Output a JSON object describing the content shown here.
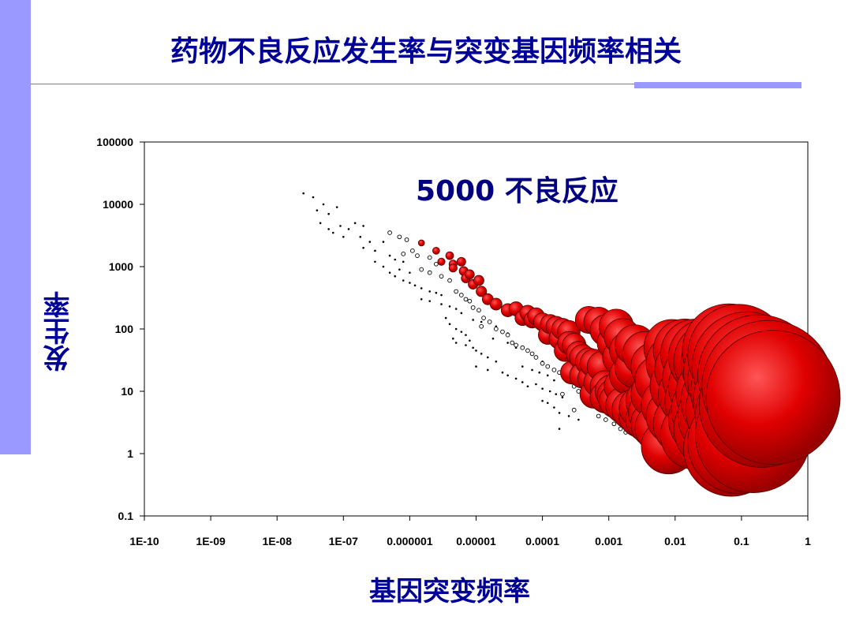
{
  "title": "药物不良反应发生率与突变基因频率相关",
  "chart_data": {
    "type": "scatter",
    "title": "",
    "annotation": "5000 不良反应",
    "xlabel": "基因突变频率",
    "ylabel": "发生率",
    "xscale": "log",
    "yscale": "log",
    "xlim": [
      1e-10,
      1
    ],
    "ylim": [
      0.1,
      100000
    ],
    "x_tick_labels": [
      "1E-10",
      "1E-09",
      "1E-08",
      "1E-07",
      "0.000001",
      "0.00001",
      "0.0001",
      "0.001",
      "0.01",
      "0.1",
      "1"
    ],
    "y_tick_labels": [
      "100000",
      "10000",
      "1000",
      "100",
      "10",
      "1",
      "0.1"
    ],
    "marker_colors": {
      "dot": "#000000",
      "open": "#000000",
      "bubble": "#e00000"
    },
    "series": [
      {
        "marker": "dot",
        "points": [
          [
            2.5e-08,
            15000
          ],
          [
            3.5e-08,
            13000
          ],
          [
            5e-08,
            10000
          ],
          [
            6e-08,
            7000
          ],
          [
            4e-08,
            8000
          ],
          [
            8e-08,
            9000
          ],
          [
            4.5e-08,
            5000
          ],
          [
            6e-08,
            4000
          ],
          [
            9e-08,
            4500
          ],
          [
            1.2e-07,
            4000
          ],
          [
            7e-08,
            3500
          ],
          [
            1e-07,
            3000
          ],
          [
            1.5e-07,
            5000
          ],
          [
            2e-07,
            4500
          ],
          [
            1.8e-07,
            3000
          ],
          [
            2.5e-07,
            2500
          ],
          [
            2e-07,
            2000
          ],
          [
            3e-07,
            1800
          ],
          [
            4e-07,
            2500
          ],
          [
            5e-07,
            1500
          ],
          [
            3e-07,
            1200
          ],
          [
            6e-07,
            1300
          ],
          [
            8e-07,
            1200
          ],
          [
            4e-07,
            1000
          ],
          [
            7e-07,
            900
          ],
          [
            1e-06,
            800
          ],
          [
            5e-07,
            800
          ],
          [
            6e-07,
            700
          ],
          [
            8e-07,
            600
          ],
          [
            1e-06,
            550
          ],
          [
            1.2e-06,
            500
          ],
          [
            1.5e-06,
            450
          ],
          [
            2e-06,
            400
          ],
          [
            2.5e-06,
            380
          ],
          [
            3e-06,
            350
          ],
          [
            1.5e-06,
            300
          ],
          [
            2e-06,
            280
          ],
          [
            3e-06,
            250
          ],
          [
            4e-06,
            230
          ],
          [
            5e-06,
            210
          ],
          [
            3.5e-06,
            150
          ],
          [
            4e-06,
            120
          ],
          [
            5e-06,
            100
          ],
          [
            6e-06,
            90
          ],
          [
            7e-06,
            80
          ],
          [
            4.5e-06,
            70
          ],
          [
            5e-06,
            60
          ],
          [
            7e-06,
            55
          ],
          [
            9e-06,
            50
          ],
          [
            1e-05,
            45
          ],
          [
            1.2e-05,
            40
          ],
          [
            1.5e-05,
            35
          ],
          [
            2e-05,
            30
          ],
          [
            1e-05,
            25
          ],
          [
            1.5e-05,
            22
          ],
          [
            2.5e-05,
            20
          ],
          [
            3e-05,
            18
          ],
          [
            4e-05,
            16
          ],
          [
            5e-05,
            14
          ],
          [
            6e-05,
            12
          ],
          [
            3e-05,
            60
          ],
          [
            4e-05,
            50
          ],
          [
            6e-05,
            45
          ],
          [
            7e-05,
            40
          ],
          [
            8e-05,
            35
          ],
          [
            0.0001,
            30
          ],
          [
            5e-05,
            25
          ],
          [
            7e-05,
            22
          ],
          [
            9e-05,
            20
          ],
          [
            0.00012,
            18
          ],
          [
            0.00015,
            15
          ],
          [
            8e-05,
            13
          ],
          [
            0.0001,
            11
          ],
          [
            0.00013,
            10
          ],
          [
            0.00016,
            9
          ],
          [
            0.0002,
            8
          ],
          [
            0.0001,
            7
          ],
          [
            0.00012,
            6.5
          ],
          [
            0.00015,
            5.5
          ],
          [
            0.00018,
            4.5
          ],
          [
            0.00025,
            4
          ],
          [
            0.00035,
            3.5
          ],
          [
            0.00018,
            2.5
          ],
          [
            6e-06,
            180
          ],
          [
            9e-06,
            140
          ],
          [
            1.2e-05,
            130
          ],
          [
            2e-05,
            110
          ],
          [
            8e-06,
            65
          ],
          [
            1.8e-05,
            70
          ],
          [
            3e-05,
            85
          ]
        ]
      },
      {
        "marker": "open",
        "points": [
          [
            5e-07,
            3500
          ],
          [
            7e-07,
            3000
          ],
          [
            9e-07,
            2700
          ],
          [
            1.1e-06,
            1800
          ],
          [
            8e-07,
            1600
          ],
          [
            1.3e-06,
            1500
          ],
          [
            2e-06,
            1400
          ],
          [
            2.5e-06,
            1100
          ],
          [
            1.5e-06,
            900
          ],
          [
            2e-06,
            800
          ],
          [
            3e-06,
            700
          ],
          [
            4e-06,
            600
          ],
          [
            5e-06,
            400
          ],
          [
            6e-06,
            350
          ],
          [
            7e-06,
            300
          ],
          [
            8e-06,
            280
          ],
          [
            9e-06,
            220
          ],
          [
            1.1e-05,
            200
          ],
          [
            1.3e-05,
            150
          ],
          [
            1.6e-05,
            130
          ],
          [
            1.2e-05,
            110
          ],
          [
            2e-05,
            100
          ],
          [
            2.5e-05,
            90
          ],
          [
            3e-05,
            80
          ],
          [
            3.5e-05,
            60
          ],
          [
            4e-05,
            55
          ],
          [
            5e-05,
            50
          ],
          [
            6e-05,
            45
          ],
          [
            7e-05,
            40
          ],
          [
            8e-05,
            35
          ],
          [
            0.0001,
            28
          ],
          [
            0.00012,
            25
          ],
          [
            0.00015,
            22
          ],
          [
            0.00018,
            20
          ],
          [
            0.00022,
            18
          ],
          [
            0.00026,
            16
          ],
          [
            0.0003,
            12
          ],
          [
            0.00035,
            10
          ],
          [
            0.0002,
            9
          ],
          [
            0.0004,
            8
          ],
          [
            0.0005,
            7
          ],
          [
            0.0006,
            6
          ],
          [
            0.0003,
            5
          ],
          [
            0.0007,
            4
          ],
          [
            0.0009,
            3.5
          ],
          [
            0.0012,
            3
          ],
          [
            0.0015,
            2.5
          ],
          [
            0.0018,
            2.2
          ],
          [
            0.0025,
            2
          ]
        ]
      },
      {
        "marker": "bubble",
        "size_note": "bubble size grows with mutation frequency",
        "points": [
          [
            1.5e-06,
            2400
          ],
          [
            2.5e-06,
            1800
          ],
          [
            4e-06,
            1500
          ],
          [
            6e-06,
            1200
          ],
          [
            4.5e-06,
            1100
          ],
          [
            3e-06,
            1200
          ],
          [
            4.5e-06,
            950
          ],
          [
            6.5e-06,
            850
          ],
          [
            8e-06,
            750
          ],
          [
            7e-06,
            650
          ],
          [
            1.1e-05,
            600
          ],
          [
            9e-06,
            520
          ],
          [
            1.2e-05,
            400
          ],
          [
            1.5e-05,
            300
          ],
          [
            2e-05,
            250
          ],
          [
            3e-05,
            200
          ],
          [
            4e-05,
            210
          ],
          [
            6e-05,
            180
          ],
          [
            8e-05,
            160
          ],
          [
            5e-05,
            150
          ],
          [
            7e-05,
            140
          ],
          [
            0.0001,
            130
          ],
          [
            0.00013,
            120
          ],
          [
            0.00016,
            110
          ],
          [
            0.0002,
            100
          ],
          [
            0.00025,
            90
          ],
          [
            0.00012,
            80
          ],
          [
            0.00018,
            70
          ],
          [
            0.00025,
            60
          ],
          [
            0.0003,
            55
          ],
          [
            0.00022,
            45
          ],
          [
            0.00035,
            40
          ],
          [
            0.0004,
            35
          ],
          [
            0.0005,
            30
          ],
          [
            0.0006,
            28
          ],
          [
            0.0008,
            25
          ],
          [
            0.00028,
            20
          ],
          [
            0.0004,
            18
          ],
          [
            0.00055,
            16
          ],
          [
            0.0007,
            14
          ],
          [
            0.0009,
            12
          ],
          [
            0.0011,
            10
          ],
          [
            0.0006,
            9
          ],
          [
            0.0009,
            8
          ],
          [
            0.0013,
            7
          ],
          [
            0.0017,
            6
          ],
          [
            0.0022,
            5
          ],
          [
            0.003,
            4
          ],
          [
            0.004,
            3.5
          ],
          [
            0.005,
            3
          ],
          [
            0.006,
            2.6
          ],
          [
            0.008,
            1.3
          ],
          [
            0.0012,
            8.5
          ],
          [
            0.0016,
            12
          ],
          [
            0.002,
            18
          ],
          [
            0.0025,
            24
          ],
          [
            0.0015,
            35
          ],
          [
            0.002,
            45
          ],
          [
            0.0012,
            60
          ],
          [
            0.0016,
            75
          ],
          [
            0.0009,
            95
          ],
          [
            0.0013,
            110
          ],
          [
            0.0005,
            140
          ],
          [
            0.0007,
            130
          ],
          [
            0.003,
            5.5
          ],
          [
            0.004,
            7
          ],
          [
            0.005,
            9
          ],
          [
            0.0045,
            4.5
          ],
          [
            0.0025,
            55
          ],
          [
            0.0035,
            40
          ],
          [
            0.005,
            25
          ],
          [
            0.006,
            15
          ],
          [
            0.008,
            6
          ],
          [
            0.01,
            4
          ],
          [
            0.014,
            3
          ],
          [
            0.02,
            2
          ],
          [
            0.03,
            3.5
          ],
          [
            0.04,
            2.5
          ],
          [
            0.012,
            12
          ],
          [
            0.018,
            9
          ],
          [
            0.025,
            7
          ],
          [
            0.035,
            5
          ],
          [
            0.05,
            4
          ],
          [
            0.07,
            1.2
          ],
          [
            0.01,
            28
          ],
          [
            0.015,
            22
          ],
          [
            0.022,
            16
          ],
          [
            0.03,
            12
          ],
          [
            0.045,
            9
          ],
          [
            0.06,
            7
          ],
          [
            0.08,
            5
          ],
          [
            0.009,
            50
          ],
          [
            0.014,
            45
          ],
          [
            0.02,
            40
          ],
          [
            0.03,
            35
          ],
          [
            0.04,
            30
          ],
          [
            0.06,
            28
          ],
          [
            0.07,
            20
          ],
          [
            0.09,
            15
          ],
          [
            0.11,
            10
          ],
          [
            0.13,
            7
          ],
          [
            0.15,
            4
          ],
          [
            0.065,
            45
          ],
          [
            0.09,
            38
          ],
          [
            0.12,
            25
          ],
          [
            0.18,
            18
          ],
          [
            0.25,
            12
          ],
          [
            0.3,
            8
          ],
          [
            0.2,
            6
          ],
          [
            0.15,
            2
          ],
          [
            0.09,
            1.5
          ]
        ]
      }
    ]
  }
}
